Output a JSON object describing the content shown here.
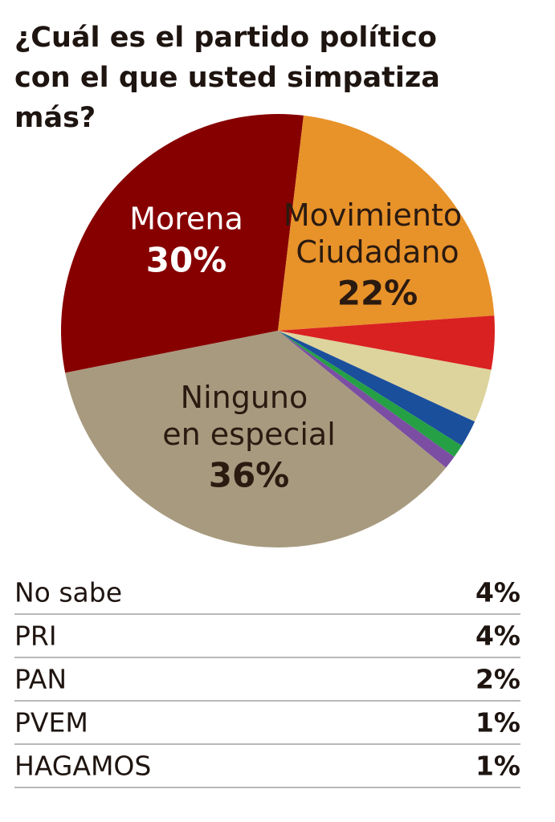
{
  "chart_data": {
    "type": "pie",
    "title": "¿Cuál es el partido político con el que usted simpatiza más?",
    "categories": [
      "Morena",
      "Movimiento Ciudadano",
      null,
      null,
      null,
      null,
      null,
      "Ninguno en especial"
    ],
    "values": [
      30,
      22,
      4,
      4,
      2,
      1,
      1,
      36
    ],
    "value_labels": [
      "30%",
      "22%",
      null,
      null,
      null,
      null,
      null,
      "36%"
    ],
    "colors": [
      "#870000",
      "#e8922a",
      "#d92121",
      "#ddd39c",
      "#1a4f9c",
      "#25a045",
      "#7b4ea3",
      "#a89a7f"
    ]
  },
  "table": {
    "rows": [
      {
        "label": "No sabe",
        "value": 4,
        "value_label": "4%"
      },
      {
        "label": "PRI",
        "value": 4,
        "value_label": "4%"
      },
      {
        "label": "PAN",
        "value": 2,
        "value_label": "2%"
      },
      {
        "label": "PVEM",
        "value": 1,
        "value_label": "1%"
      },
      {
        "label": "HAGAMOS",
        "value": 1,
        "value_label": "1%"
      }
    ]
  }
}
